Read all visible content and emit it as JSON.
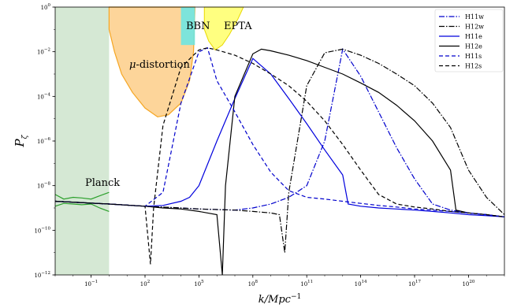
{
  "chart_data": {
    "type": "line",
    "title": "",
    "xlabel": "k/Mpc",
    "xlabel_sup": "−1",
    "ylabel": "P",
    "ylabel_sub": "ζ",
    "x_scale": "log",
    "y_scale": "log",
    "xlim": [
      0.001,
      10000000000000000000000
    ],
    "ylim": [
      1e-12,
      1
    ],
    "grid": false,
    "legend_position": "top-right",
    "x_ticks": [
      {
        "value": 0.1,
        "label": "10",
        "exp": "−1"
      },
      {
        "value": 100,
        "label": "10",
        "exp": "2"
      },
      {
        "value": 100000,
        "label": "10",
        "exp": "5"
      },
      {
        "value": 100000000,
        "label": "10",
        "exp": "8"
      },
      {
        "value": 100000000000,
        "label": "10",
        "exp": "11"
      },
      {
        "value": 100000000000000,
        "label": "10",
        "exp": "14"
      },
      {
        "value": 100000000000000000,
        "label": "10",
        "exp": "17"
      },
      {
        "value": 100000000000000000000,
        "label": "10",
        "exp": "20"
      }
    ],
    "y_ticks": [
      {
        "value": 1,
        "label": "10",
        "exp": "0"
      },
      {
        "value": 0.01,
        "label": "10",
        "exp": "−2"
      },
      {
        "value": 0.0001,
        "label": "10",
        "exp": "−4"
      },
      {
        "value": 1e-06,
        "label": "10",
        "exp": "−6"
      },
      {
        "value": 1e-08,
        "label": "10",
        "exp": "−8"
      },
      {
        "value": 1e-10,
        "label": "10",
        "exp": "−10"
      },
      {
        "value": 1e-12,
        "label": "10",
        "exp": "−12"
      }
    ],
    "regions": [
      {
        "label": "Planck",
        "color": "#d5e8d4"
      },
      {
        "label": "μ-distortion",
        "color": "#fdd59a",
        "edge": "#f5a623"
      },
      {
        "label": "BBN",
        "color": "#66e6e6"
      },
      {
        "label": "EPTA",
        "color": "#ffff80",
        "edge": "#e8d800"
      }
    ],
    "planck_data": {
      "color": "#2ca02c",
      "x": [
        0.001,
        0.003,
        0.01,
        0.03,
        0.1,
        0.3,
        1
      ],
      "upper": [
        4e-09,
        2.5e-09,
        3e-09,
        2.8e-09,
        2.5e-09,
        3.5e-09,
        5e-09
      ],
      "lower": [
        1.2e-09,
        1.6e-09,
        1.5e-09,
        1.4e-09,
        1.5e-09,
        1e-09,
        7e-10
      ]
    },
    "series": [
      {
        "name": "H11w",
        "color": "#0000cc",
        "dash": "dashdot",
        "x": [
          0.001,
          1,
          100,
          10000,
          100000,
          1000000,
          10000000,
          100000000,
          1000000000,
          10000000000,
          100000000000,
          1000000000000,
          10000000000000,
          100000000000000,
          1000000000000000,
          10000000000000000,
          100000000000000000,
          1000000000000000000,
          10000000000000000000,
          100000000000000000000,
          1000000000000000000000,
          10000000000000000000000
        ],
        "y": [
          2e-09,
          1.5e-09,
          1.2e-09,
          1e-09,
          9e-10,
          8.5e-10,
          8e-10,
          1e-09,
          1.5e-09,
          3e-09,
          1e-08,
          1e-06,
          0.013,
          0.0008,
          2e-05,
          5e-07,
          2e-08,
          1.5e-09,
          8e-10,
          6e-10,
          5e-10,
          4e-10
        ]
      },
      {
        "name": "H12w",
        "color": "#000000",
        "dash": "dashdot",
        "x": [
          0.001,
          1,
          100,
          10000,
          100000,
          1000000,
          10000000,
          100000000,
          1000000000,
          3000000000,
          6000000000,
          10000000000,
          100000000000,
          1000000000000,
          10000000000000,
          100000000000000,
          1000000000000000,
          10000000000000000,
          100000000000000000,
          1000000000000000000,
          10000000000000000000,
          100000000000000000000,
          1000000000000000000000,
          10000000000000000000000
        ],
        "y": [
          2e-09,
          1.5e-09,
          1.2e-09,
          1e-09,
          9e-10,
          8.5e-10,
          8e-10,
          7e-10,
          6e-10,
          5e-10,
          1e-11,
          5e-09,
          0.0003,
          0.009,
          0.013,
          0.007,
          0.003,
          0.001,
          0.0003,
          5e-05,
          4e-06,
          5e-08,
          3e-09,
          5e-10
        ]
      },
      {
        "name": "H11e",
        "color": "#0000dd",
        "dash": "solid",
        "x": [
          0.001,
          1,
          100,
          1000,
          10000,
          30000,
          100000,
          1000000,
          10000000,
          100000000,
          1000000000,
          10000000000,
          100000000000,
          1000000000000,
          10000000000000,
          20000000000000,
          100000000000000,
          1000000000000000,
          10000000000000000,
          100000000000000000,
          1000000000000000000,
          10000000000000000000,
          100000000000000000000,
          1000000000000000000000,
          10000000000000000000000
        ],
        "y": [
          2e-09,
          1.5e-09,
          1.2e-09,
          1.3e-09,
          2e-09,
          3e-09,
          1e-08,
          1e-06,
          8e-05,
          0.005,
          0.001,
          8e-05,
          6e-06,
          4e-07,
          3e-08,
          1.5e-09,
          1.2e-09,
          1e-09,
          9e-10,
          8e-10,
          7e-10,
          6e-10,
          5e-10,
          4.5e-10,
          4e-10
        ]
      },
      {
        "name": "H12e",
        "color": "#000000",
        "dash": "solid",
        "x": [
          0.001,
          1,
          100,
          1000,
          10000,
          100000,
          1000000,
          2000000,
          3000000,
          10000000,
          100000000,
          300000000,
          1000000000,
          10000000000,
          100000000000,
          1000000000000,
          10000000000000,
          100000000000000,
          1000000000000000,
          10000000000000000,
          100000000000000000,
          1000000000000000000,
          10000000000000000000,
          20000000000000000000,
          100000000000000000000,
          1000000000000000000000,
          10000000000000000000000
        ],
        "y": [
          2e-09,
          1.5e-09,
          1.2e-09,
          1e-09,
          9e-10,
          7e-10,
          5e-10,
          1e-12,
          1e-08,
          0.0001,
          0.008,
          0.013,
          0.011,
          0.007,
          0.004,
          0.002,
          0.001,
          0.0004,
          0.00015,
          4e-05,
          8e-06,
          1e-06,
          5e-08,
          8e-10,
          6e-10,
          5e-10,
          4e-10
        ]
      },
      {
        "name": "H11s",
        "color": "#0000cc",
        "dash": "dashed",
        "x": [
          0.001,
          1,
          100,
          1000,
          10000,
          100000,
          300000,
          1000000,
          10000000,
          100000000,
          1000000000,
          10000000000,
          100000000000,
          1000000000000,
          10000000000000,
          100000000000000,
          1000000000000000,
          10000000000000000,
          100000000000000000,
          1000000000000000000,
          10000000000000000000,
          100000000000000000000,
          1000000000000000000000,
          10000000000000000000000
        ],
        "y": [
          2e-09,
          1.5e-09,
          1.2e-09,
          5e-09,
          5e-05,
          0.01,
          0.015,
          0.0005,
          2e-05,
          7e-07,
          4e-08,
          6e-09,
          3e-09,
          2.5e-09,
          2e-09,
          1.6e-09,
          1.3e-09,
          1.1e-09,
          9e-10,
          8e-10,
          7e-10,
          6e-10,
          5e-10,
          4e-10
        ]
      },
      {
        "name": "H12s",
        "color": "#000000",
        "dash": "dashed",
        "x": [
          0.001,
          1,
          100,
          200,
          300,
          1000,
          10000,
          100000,
          300000,
          1000000,
          10000000,
          100000000,
          1000000000,
          10000000000,
          100000000000,
          1000000000000,
          10000000000000,
          100000000000000,
          1000000000000000,
          10000000000000000,
          100000000000000000,
          1000000000000000000,
          10000000000000000000,
          100000000000000000000,
          1000000000000000000000,
          10000000000000000000000
        ],
        "y": [
          2e-09,
          1.5e-09,
          1.2e-09,
          3e-12,
          1e-09,
          5e-06,
          0.002,
          0.012,
          0.015,
          0.012,
          0.007,
          0.003,
          0.001,
          0.0003,
          6e-05,
          8e-06,
          7e-07,
          5e-08,
          4e-09,
          1.5e-09,
          1.1e-09,
          9e-10,
          7e-10,
          6e-10,
          5e-10,
          4e-10
        ]
      }
    ]
  }
}
